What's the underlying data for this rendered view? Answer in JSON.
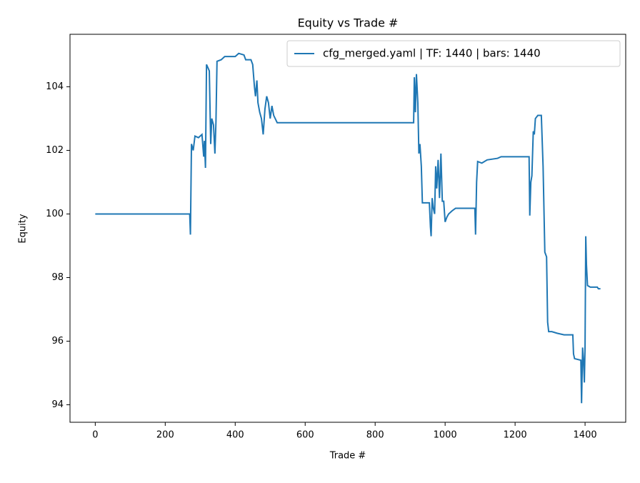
{
  "chart_data": {
    "type": "line",
    "title": "Equity vs Trade #",
    "xlabel": "Trade #",
    "ylabel": "Equity",
    "x": [
      0,
      270,
      272,
      275,
      280,
      285,
      295,
      305,
      310,
      312,
      315,
      318,
      322,
      326,
      330,
      333,
      338,
      342,
      345,
      348,
      360,
      370,
      400,
      410,
      425,
      430,
      445,
      450,
      455,
      458,
      462,
      465,
      470,
      475,
      480,
      485,
      490,
      495,
      500,
      505,
      510,
      520,
      910,
      912,
      915,
      918,
      922,
      925,
      928,
      932,
      935,
      955,
      958,
      960,
      963,
      966,
      970,
      973,
      976,
      980,
      984,
      988,
      992,
      996,
      1000,
      1005,
      1010,
      1020,
      1030,
      1085,
      1087,
      1090,
      1093,
      1105,
      1120,
      1150,
      1160,
      1240,
      1242,
      1245,
      1248,
      1252,
      1255,
      1258,
      1265,
      1275,
      1280,
      1285,
      1290,
      1293,
      1296,
      1305,
      1320,
      1340,
      1365,
      1367,
      1370,
      1388,
      1390,
      1393,
      1396,
      1398,
      1400,
      1402,
      1404,
      1407,
      1415,
      1435,
      1438,
      1444
    ],
    "series": [
      {
        "name": "cfg_merged.yaml | TF: 1440 | bars: 1440",
        "color": "#1f77b4",
        "values": [
          100,
          100,
          99.35,
          102.2,
          102.0,
          102.45,
          102.4,
          102.5,
          101.8,
          102.3,
          101.45,
          104.7,
          104.6,
          104.5,
          102.2,
          103.0,
          102.8,
          101.9,
          102.9,
          104.8,
          104.85,
          104.95,
          104.95,
          105.05,
          105.0,
          104.85,
          104.85,
          104.7,
          104.0,
          103.7,
          104.2,
          103.5,
          103.2,
          103.0,
          102.5,
          103.3,
          103.7,
          103.5,
          103.0,
          103.4,
          103.1,
          102.87,
          102.87,
          104.3,
          103.2,
          104.4,
          103.5,
          101.9,
          102.2,
          101.5,
          100.35,
          100.35,
          99.6,
          99.3,
          100.5,
          100.2,
          100.0,
          101.5,
          100.8,
          101.7,
          100.5,
          101.9,
          100.4,
          100.4,
          99.75,
          99.9,
          100.0,
          100.1,
          100.18,
          100.18,
          99.35,
          101.0,
          101.65,
          101.6,
          101.7,
          101.75,
          101.8,
          101.8,
          99.95,
          101.0,
          101.2,
          102.6,
          102.5,
          103.0,
          103.1,
          103.1,
          101.5,
          98.8,
          98.65,
          96.6,
          96.3,
          96.3,
          96.25,
          96.2,
          96.2,
          95.6,
          95.45,
          95.4,
          94.05,
          95.8,
          95.3,
          94.7,
          95.85,
          99.3,
          98.4,
          97.75,
          97.7,
          97.7,
          97.65,
          97.65
        ]
      }
    ],
    "xlim": [
      -72.2,
      1516.2
    ],
    "ylim": [
      93.45,
      105.65
    ],
    "xticks": [
      0,
      200,
      400,
      600,
      800,
      1000,
      1200,
      1400
    ],
    "yticks": [
      94,
      96,
      98,
      100,
      102,
      104
    ],
    "legend": "upper right"
  }
}
